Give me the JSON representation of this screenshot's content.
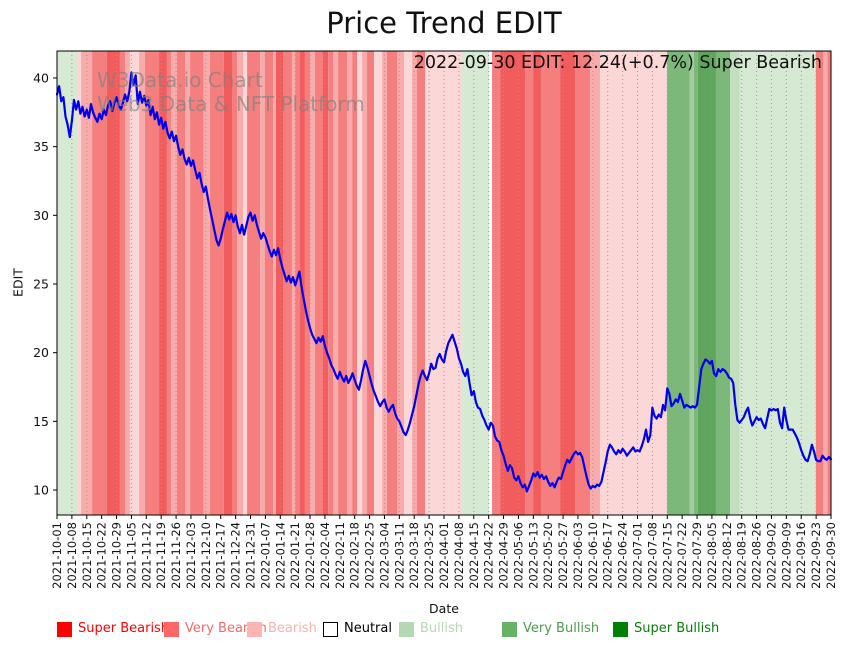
{
  "figure": {
    "title": "Price Trend EDIT",
    "annotation": "2022-09-30 EDIT: 12.24(+0.7%) Super Bearish",
    "watermark_line1": "W3Data.io Chart",
    "watermark_line2": "Web3 Data & NFT Platform"
  },
  "legend": {
    "items": [
      {
        "label": "Super Bearish",
        "swatch": "#ff0000",
        "text": "#ff0000",
        "border": "#ff0000"
      },
      {
        "label": "Very Bearish",
        "swatch": "#ff6666",
        "text": "#f56a6a",
        "border": "#ff6666"
      },
      {
        "label": "Bearish",
        "swatch": "#ffb3b3",
        "text": "#f8b1b1",
        "border": "#ffb3b3"
      },
      {
        "label": "Neutral",
        "swatch": "#ffffff",
        "text": "#000000",
        "border": "#000000"
      },
      {
        "label": "Bullish",
        "swatch": "#b3d9b3",
        "text": "#b6d8b2",
        "border": "#b3d9b3"
      },
      {
        "label": "Very Bullish",
        "swatch": "#66b366",
        "text": "#4e9b4e",
        "border": "#66b366"
      },
      {
        "label": "Super Bullish",
        "swatch": "#008000",
        "text": "#077d07",
        "border": "#008000"
      }
    ]
  },
  "chart_data": {
    "type": "line",
    "title": "Price Trend EDIT",
    "xlabel": "Date",
    "ylabel": "EDIT",
    "ylim": [
      8.2,
      42.2
    ],
    "yticks": [
      10,
      15,
      20,
      25,
      30,
      35,
      40
    ],
    "grid": "vertical-dotted-weekly",
    "legend_position": "bottom",
    "x_start_date": "2021-10-01",
    "x_end_date": "2022-09-30",
    "x_tick_labels": [
      "2021-10-01",
      "2021-10-08",
      "2021-10-15",
      "2021-10-22",
      "2021-10-29",
      "2021-11-05",
      "2021-11-12",
      "2021-11-19",
      "2021-11-26",
      "2021-12-03",
      "2021-12-10",
      "2021-12-17",
      "2021-12-24",
      "2021-12-31",
      "2022-01-07",
      "2022-01-14",
      "2022-01-21",
      "2022-01-28",
      "2022-02-04",
      "2022-02-11",
      "2022-02-18",
      "2022-02-25",
      "2022-03-04",
      "2022-03-11",
      "2022-03-18",
      "2022-03-25",
      "2022-04-01",
      "2022-04-08",
      "2022-04-15",
      "2022-04-22",
      "2022-04-29",
      "2022-05-06",
      "2022-05-13",
      "2022-05-20",
      "2022-05-27",
      "2022-06-03",
      "2022-06-10",
      "2022-06-17",
      "2022-06-24",
      "2022-07-01",
      "2022-07-08",
      "2022-07-15",
      "2022-07-22",
      "2022-07-29",
      "2022-08-05",
      "2022-08-12",
      "2022-08-19",
      "2022-08-26",
      "2022-09-02",
      "2022-09-09",
      "2022-09-16",
      "2022-09-23",
      "2022-09-30"
    ],
    "last_point": {
      "date": "2022-09-30",
      "value": 12.24,
      "change_pct": "+0.7%",
      "sentiment": "Super Bearish"
    },
    "series": [
      {
        "name": "EDIT",
        "color": "#0000ee",
        "width": 2.2,
        "start_day": 0,
        "values_daily": [
          38.8,
          39.4,
          38.3,
          38.6,
          37.2,
          36.6,
          35.7,
          36.9,
          38.4,
          37.7,
          38.3,
          37.4,
          37.9,
          37.2,
          37.7,
          37.1,
          38.1,
          37.5,
          37.1,
          36.8,
          37.4,
          37.0,
          37.7,
          37.3,
          38.0,
          38.3,
          37.6,
          38.2,
          38.6,
          38.0,
          37.7,
          38.2,
          38.8,
          38.3,
          39.0,
          40.4,
          39.5,
          40.2,
          38.1,
          39.0,
          38.2,
          38.7,
          38.0,
          38.4,
          37.3,
          37.9,
          37.0,
          37.5,
          36.6,
          37.1,
          36.3,
          36.8,
          36.0,
          35.6,
          36.1,
          35.4,
          35.8,
          35.0,
          34.4,
          34.8,
          34.1,
          33.7,
          34.2,
          33.6,
          34.0,
          33.3,
          32.7,
          33.1,
          32.3,
          31.7,
          32.1,
          31.2,
          30.4,
          29.7,
          28.9,
          28.2,
          27.8,
          28.3,
          29.0,
          29.6,
          30.2,
          29.7,
          30.1,
          29.5,
          30.0,
          29.2,
          28.7,
          29.3,
          28.6,
          29.2,
          29.9,
          30.2,
          29.6,
          30.0,
          29.3,
          28.8,
          28.3,
          28.7,
          28.4,
          27.9,
          27.4,
          27.0,
          27.5,
          27.1,
          27.6,
          26.8,
          26.2,
          25.7,
          25.2,
          25.6,
          25.1,
          25.5,
          24.9,
          25.4,
          25.9,
          24.8,
          23.9,
          23.1,
          22.4,
          21.8,
          21.3,
          21.0,
          20.7,
          21.1,
          20.8,
          21.2,
          20.5,
          20.0,
          19.6,
          19.1,
          18.8,
          18.4,
          18.1,
          18.6,
          18.2,
          17.9,
          18.3,
          17.8,
          18.1,
          18.5,
          18.0,
          17.6,
          17.3,
          18.0,
          18.8,
          19.4,
          18.9,
          18.3,
          17.7,
          17.2,
          16.8,
          16.4,
          16.1,
          16.4,
          16.6,
          16.0,
          15.7,
          16.0,
          16.2,
          15.6,
          15.2,
          15.0,
          14.6,
          14.2,
          14.0,
          14.4,
          14.9,
          15.5,
          16.1,
          16.9,
          17.7,
          18.3,
          18.7,
          18.3,
          18.0,
          18.5,
          19.2,
          18.8,
          18.9,
          19.6,
          19.9,
          19.5,
          19.3,
          20.1,
          20.7,
          21.0,
          21.3,
          20.8,
          20.3,
          19.6,
          19.2,
          18.6,
          18.3,
          18.8,
          17.8,
          16.9,
          17.2,
          16.4,
          16.0,
          15.9,
          15.4,
          15.1,
          14.7,
          14.4,
          14.9,
          14.7,
          13.9,
          13.6,
          13.5,
          12.9,
          12.5,
          11.9,
          11.4,
          11.8,
          11.6,
          10.9,
          10.7,
          11.0,
          10.5,
          10.2,
          10.4,
          9.9,
          10.3,
          10.7,
          11.2,
          11.0,
          11.3,
          10.9,
          11.1,
          10.8,
          11.0,
          10.6,
          10.3,
          10.5,
          10.2,
          10.6,
          10.9,
          10.8,
          11.3,
          11.8,
          12.2,
          12.0,
          12.3,
          12.6,
          12.8,
          12.6,
          12.7,
          12.4,
          11.7,
          11.0,
          10.4,
          10.1,
          10.3,
          10.2,
          10.4,
          10.3,
          10.6,
          11.3,
          12.0,
          12.8,
          13.3,
          13.1,
          12.8,
          12.6,
          12.9,
          12.7,
          13.0,
          12.8,
          12.5,
          12.7,
          12.9,
          13.1,
          12.8,
          12.9,
          12.8,
          13.2,
          13.7,
          14.4,
          13.5,
          14.0,
          16.0,
          15.4,
          15.2,
          15.5,
          15.3,
          16.2,
          15.8,
          17.4,
          17.0,
          16.1,
          16.3,
          16.6,
          16.4,
          17.0,
          16.5,
          16.0,
          16.2,
          16.1,
          16.0,
          16.1,
          16.0,
          16.2,
          17.5,
          18.8,
          19.2,
          19.5,
          19.4,
          19.2,
          19.4,
          18.5,
          18.3,
          18.8,
          18.6,
          18.8,
          18.7,
          18.5,
          18.2,
          18.1,
          17.8,
          16.2,
          15.1,
          14.9,
          15.1,
          15.3,
          15.7,
          16.0,
          15.2,
          14.7,
          15.0,
          15.3,
          15.1,
          15.2,
          14.8,
          14.5,
          15.2,
          15.9,
          15.8,
          15.9,
          15.8,
          15.9,
          14.9,
          14.5,
          16.0,
          15.1,
          14.4,
          14.4,
          14.4,
          14.1,
          13.8,
          13.4,
          12.9,
          12.5,
          12.2,
          12.1,
          12.6,
          13.3,
          12.8,
          12.2,
          12.1,
          12.1,
          12.5,
          12.3,
          12.2,
          12.4,
          12.24
        ]
      }
    ],
    "sentiment_bands": [
      {
        "s": 0,
        "e": 9.4,
        "color": "#d6e9d2",
        "sentiment": "Bullish"
      },
      {
        "s": 9.4,
        "e": 11.3,
        "color": "#fbd7d7",
        "sentiment": "Bearish"
      },
      {
        "s": 11.3,
        "e": 16.5,
        "color": "#f7abab",
        "sentiment": "Bearish"
      },
      {
        "s": 16.5,
        "e": 23.5,
        "color": "#f57f7f",
        "sentiment": "Very Bearish"
      },
      {
        "s": 23.5,
        "e": 29.6,
        "color": "#f15c5c",
        "sentiment": "Super Bearish"
      },
      {
        "s": 29.6,
        "e": 32,
        "color": "#f57f7f",
        "sentiment": "Very Bearish"
      },
      {
        "s": 32,
        "e": 34.3,
        "color": "#f7abab",
        "sentiment": "Bearish"
      },
      {
        "s": 34.3,
        "e": 38.6,
        "color": "#fbd7d7",
        "sentiment": "Bearish"
      },
      {
        "s": 38.6,
        "e": 41.4,
        "color": "#f7abab",
        "sentiment": "Bearish"
      },
      {
        "s": 41.4,
        "e": 48,
        "color": "#f57f7f",
        "sentiment": "Very Bearish"
      },
      {
        "s": 48,
        "e": 51.7,
        "color": "#f15c5c",
        "sentiment": "Super Bearish"
      },
      {
        "s": 51.7,
        "e": 53.6,
        "color": "#f57f7f",
        "sentiment": "Very Bearish"
      },
      {
        "s": 53.6,
        "e": 56.4,
        "color": "#f7abab",
        "sentiment": "Bearish"
      },
      {
        "s": 56.4,
        "e": 60.2,
        "color": "#f57f7f",
        "sentiment": "Very Bearish"
      },
      {
        "s": 60.2,
        "e": 62.6,
        "color": "#f7abab",
        "sentiment": "Bearish"
      },
      {
        "s": 62.6,
        "e": 69,
        "color": "#f57f7f",
        "sentiment": "Very Bearish"
      },
      {
        "s": 69,
        "e": 71.9,
        "color": "#f7abab",
        "sentiment": "Bearish"
      },
      {
        "s": 71.9,
        "e": 78.4,
        "color": "#f57f7f",
        "sentiment": "Very Bearish"
      },
      {
        "s": 78.4,
        "e": 82.3,
        "color": "#f15c5c",
        "sentiment": "Super Bearish"
      },
      {
        "s": 82.3,
        "e": 84.7,
        "color": "#f57f7f",
        "sentiment": "Very Bearish"
      },
      {
        "s": 84.7,
        "e": 87.5,
        "color": "#f7abab",
        "sentiment": "Bearish"
      },
      {
        "s": 87.5,
        "e": 89.4,
        "color": "#fbd7d7",
        "sentiment": "Bearish"
      },
      {
        "s": 89.4,
        "e": 95.5,
        "color": "#f57f7f",
        "sentiment": "Very Bearish"
      },
      {
        "s": 95.5,
        "e": 97.8,
        "color": "#f7abab",
        "sentiment": "Bearish"
      },
      {
        "s": 97.8,
        "e": 101.6,
        "color": "#f57f7f",
        "sentiment": "Very Bearish"
      },
      {
        "s": 101.6,
        "e": 103,
        "color": "#f7abab",
        "sentiment": "Bearish"
      },
      {
        "s": 103,
        "e": 106.3,
        "color": "#f15c5c",
        "sentiment": "Super Bearish"
      },
      {
        "s": 106.3,
        "e": 110.5,
        "color": "#f57f7f",
        "sentiment": "Very Bearish"
      },
      {
        "s": 110.5,
        "e": 112,
        "color": "#f7abab",
        "sentiment": "Bearish"
      },
      {
        "s": 112,
        "e": 114.3,
        "color": "#f57f7f",
        "sentiment": "Very Bearish"
      },
      {
        "s": 114.3,
        "e": 116.6,
        "color": "#f15c5c",
        "sentiment": "Super Bearish"
      },
      {
        "s": 116.6,
        "e": 119,
        "color": "#f57f7f",
        "sentiment": "Very Bearish"
      },
      {
        "s": 119,
        "e": 121.3,
        "color": "#f7abab",
        "sentiment": "Bearish"
      },
      {
        "s": 121.3,
        "e": 125.1,
        "color": "#f57f7f",
        "sentiment": "Very Bearish"
      },
      {
        "s": 125.1,
        "e": 127.5,
        "color": "#f15c5c",
        "sentiment": "Super Bearish"
      },
      {
        "s": 127.5,
        "e": 129.8,
        "color": "#f57f7f",
        "sentiment": "Very Bearish"
      },
      {
        "s": 129.8,
        "e": 132.2,
        "color": "#f7abab",
        "sentiment": "Bearish"
      },
      {
        "s": 132.2,
        "e": 136.4,
        "color": "#f57f7f",
        "sentiment": "Very Bearish"
      },
      {
        "s": 136.4,
        "e": 138.8,
        "color": "#f7abab",
        "sentiment": "Bearish"
      },
      {
        "s": 138.8,
        "e": 141.1,
        "color": "#f57f7f",
        "sentiment": "Very Bearish"
      },
      {
        "s": 141.1,
        "e": 143.5,
        "color": "#fbd7d7",
        "sentiment": "Bearish"
      },
      {
        "s": 143.5,
        "e": 145.8,
        "color": "#f7abab",
        "sentiment": "Bearish"
      },
      {
        "s": 145.8,
        "e": 149.1,
        "color": "#f57f7f",
        "sentiment": "Very Bearish"
      },
      {
        "s": 149.1,
        "e": 152.9,
        "color": "#fbd7d7",
        "sentiment": "Bearish"
      },
      {
        "s": 152.9,
        "e": 155.2,
        "color": "#f7abab",
        "sentiment": "Bearish"
      },
      {
        "s": 155.2,
        "e": 159.9,
        "color": "#f57f7f",
        "sentiment": "Very Bearish"
      },
      {
        "s": 159.9,
        "e": 163.2,
        "color": "#f7abab",
        "sentiment": "Bearish"
      },
      {
        "s": 163.2,
        "e": 167,
        "color": "#fbd7d7",
        "sentiment": "Bearish"
      },
      {
        "s": 167,
        "e": 169.3,
        "color": "#f7abab",
        "sentiment": "Bearish"
      },
      {
        "s": 169.3,
        "e": 173.1,
        "color": "#f57f7f",
        "sentiment": "Very Bearish"
      },
      {
        "s": 173.1,
        "e": 190.5,
        "color": "#fbd7d7",
        "sentiment": "Bearish"
      },
      {
        "s": 190.5,
        "e": 203.2,
        "color": "#d6e9d2",
        "sentiment": "Bullish"
      },
      {
        "s": 204.6,
        "e": 208.4,
        "color": "#f57f7f",
        "sentiment": "Very Bearish"
      },
      {
        "s": 208.4,
        "e": 220.1,
        "color": "#f15c5c",
        "sentiment": "Super Bearish"
      },
      {
        "s": 220.1,
        "e": 223.9,
        "color": "#f57f7f",
        "sentiment": "Very Bearish"
      },
      {
        "s": 223.9,
        "e": 227.6,
        "color": "#f15c5c",
        "sentiment": "Super Bearish"
      },
      {
        "s": 227.6,
        "e": 236.6,
        "color": "#f57f7f",
        "sentiment": "Very Bearish"
      },
      {
        "s": 236.6,
        "e": 243.6,
        "color": "#f15c5c",
        "sentiment": "Super Bearish"
      },
      {
        "s": 243.6,
        "e": 250.7,
        "color": "#f57f7f",
        "sentiment": "Very Bearish"
      },
      {
        "s": 250.7,
        "e": 255.4,
        "color": "#f7abab",
        "sentiment": "Bearish"
      },
      {
        "s": 255.4,
        "e": 286.9,
        "color": "#fbd7d7",
        "sentiment": "Bearish"
      },
      {
        "s": 286.9,
        "e": 297.6,
        "color": "#7cb87a",
        "sentiment": "Very Bullish"
      },
      {
        "s": 297.6,
        "e": 299.5,
        "color": "#a3cda0",
        "sentiment": "Bullish"
      },
      {
        "s": 299.5,
        "e": 301.4,
        "color": "#7cb87a",
        "sentiment": "Very Bullish"
      },
      {
        "s": 301.4,
        "e": 309.9,
        "color": "#5fa55e",
        "sentiment": "Super Bullish"
      },
      {
        "s": 309.9,
        "e": 316.5,
        "color": "#7cb87a",
        "sentiment": "Very Bullish"
      },
      {
        "s": 316.5,
        "e": 321,
        "color": "#c4dfc0",
        "sentiment": "Bullish"
      },
      {
        "s": 321,
        "e": 356.9,
        "color": "#d6e9d2",
        "sentiment": "Bullish"
      },
      {
        "s": 356.9,
        "e": 360.4,
        "color": "#f57f7f",
        "sentiment": "Very Bearish"
      },
      {
        "s": 360.4,
        "e": 362.3,
        "color": "#f7abab",
        "sentiment": "Bearish"
      },
      {
        "s": 362.3,
        "e": 365,
        "color": "#f57f7f",
        "sentiment": "Very Bearish"
      }
    ]
  }
}
